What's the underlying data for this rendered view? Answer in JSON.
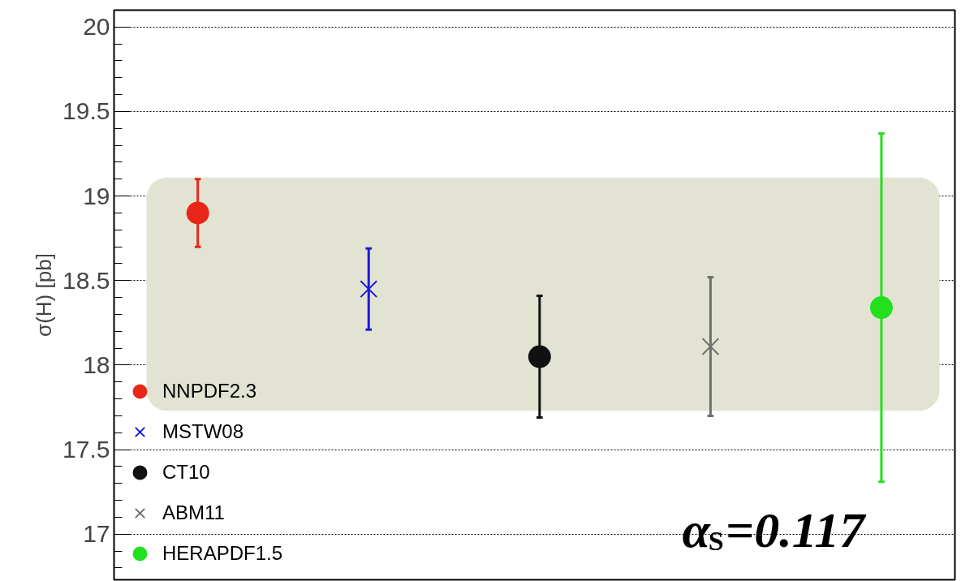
{
  "chart_data": {
    "type": "scatter",
    "ylabel": "σ(H) [pb]",
    "categories": [
      null,
      null,
      null,
      null,
      null
    ],
    "series": [
      {
        "name": "NNPDF2.3",
        "color": "#e8261a",
        "marker": "circle",
        "values": [
          18.9,
          null,
          null,
          null,
          null
        ],
        "errors": [
          [
            18.7,
            19.1
          ],
          null,
          null,
          null,
          null
        ]
      },
      {
        "name": "MSTW08",
        "color": "#1a1ad8",
        "marker": "cross",
        "values": [
          null,
          18.45,
          null,
          null,
          null
        ],
        "errors": [
          null,
          [
            18.21,
            18.69
          ],
          null,
          null,
          null
        ]
      },
      {
        "name": "CT10",
        "color": "#111111",
        "marker": "circle",
        "values": [
          null,
          null,
          18.05,
          null,
          null
        ],
        "errors": [
          null,
          null,
          [
            17.69,
            18.41
          ],
          null,
          null
        ]
      },
      {
        "name": "ABM11",
        "color": "#6e6e6e",
        "marker": "cross",
        "values": [
          null,
          null,
          null,
          18.11,
          null
        ],
        "errors": [
          null,
          null,
          null,
          [
            17.7,
            18.52
          ],
          null
        ]
      },
      {
        "name": "HERAPDF1.5",
        "color": "#22e01e",
        "marker": "circle",
        "values": [
          null,
          null,
          null,
          null,
          18.34
        ],
        "errors": [
          null,
          null,
          null,
          null,
          [
            17.31,
            19.37
          ]
        ]
      }
    ],
    "bands": [
      {
        "axis": "y",
        "from": 17.73,
        "to": 19.11,
        "color": "#e3e3d3"
      }
    ],
    "ylim": [
      16.73,
      20.1
    ],
    "yticks": [
      17,
      17.5,
      18,
      18.5,
      19,
      19.5,
      20
    ],
    "grid": "y",
    "legend": "bottom left",
    "tick_labels": "y",
    "annotations": [
      "α$_{S}$=0.117"
    ]
  }
}
